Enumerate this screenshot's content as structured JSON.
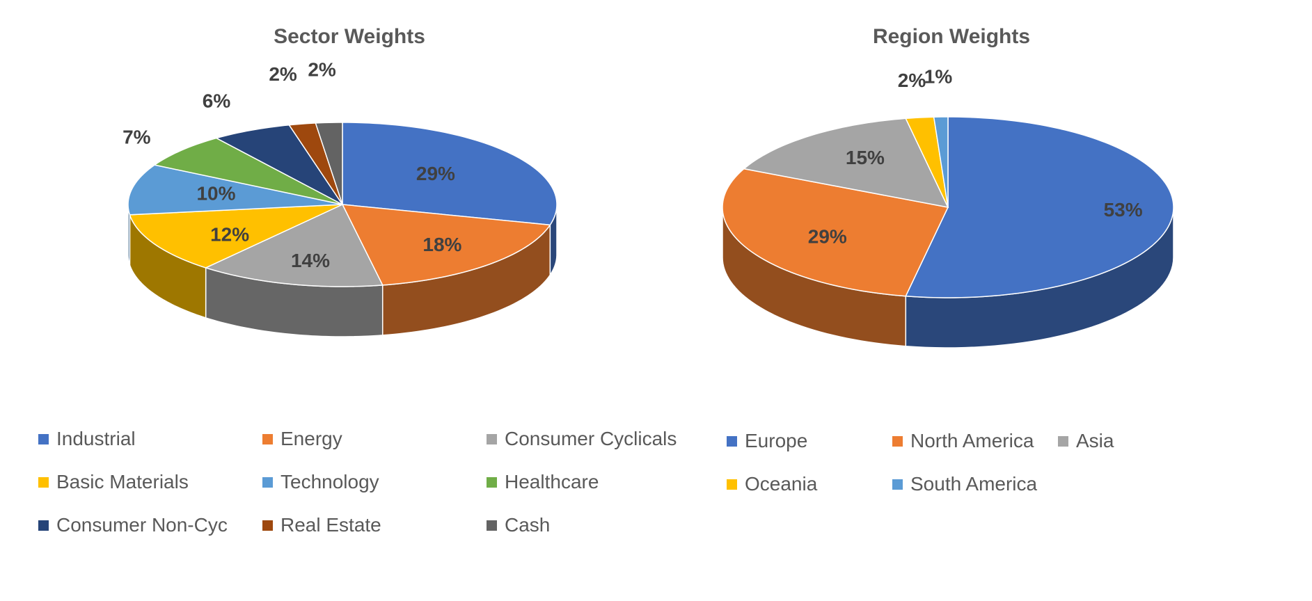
{
  "chart_data": [
    {
      "type": "pie",
      "title": "Sector Weights",
      "unit": "%",
      "legend_position": "bottom",
      "slices": [
        {
          "name": "Industrial",
          "value": 29,
          "color": "#4472C4"
        },
        {
          "name": "Energy",
          "value": 18,
          "color": "#ED7D31"
        },
        {
          "name": "Consumer Cyclicals",
          "value": 14,
          "color": "#A5A5A5"
        },
        {
          "name": "Basic Materials",
          "value": 12,
          "color": "#FFC000"
        },
        {
          "name": "Technology",
          "value": 10,
          "color": "#5B9BD5"
        },
        {
          "name": "Healthcare",
          "value": 7,
          "color": "#70AD47"
        },
        {
          "name": "Consumer Non-Cyc",
          "value": 6,
          "color": "#264478"
        },
        {
          "name": "Real Estate",
          "value": 2,
          "color": "#9E480E"
        },
        {
          "name": "Cash",
          "value": 2,
          "color": "#636363"
        }
      ]
    },
    {
      "type": "pie",
      "title": "Region Weights",
      "unit": "%",
      "legend_position": "bottom",
      "slices": [
        {
          "name": "Europe",
          "value": 53,
          "color": "#4472C4"
        },
        {
          "name": "North America",
          "value": 29,
          "color": "#ED7D31"
        },
        {
          "name": "Asia",
          "value": 15,
          "color": "#A5A5A5"
        },
        {
          "name": "Oceania",
          "value": 2,
          "color": "#FFC000"
        },
        {
          "name": "South America",
          "value": 1,
          "color": "#5B9BD5"
        }
      ]
    }
  ]
}
